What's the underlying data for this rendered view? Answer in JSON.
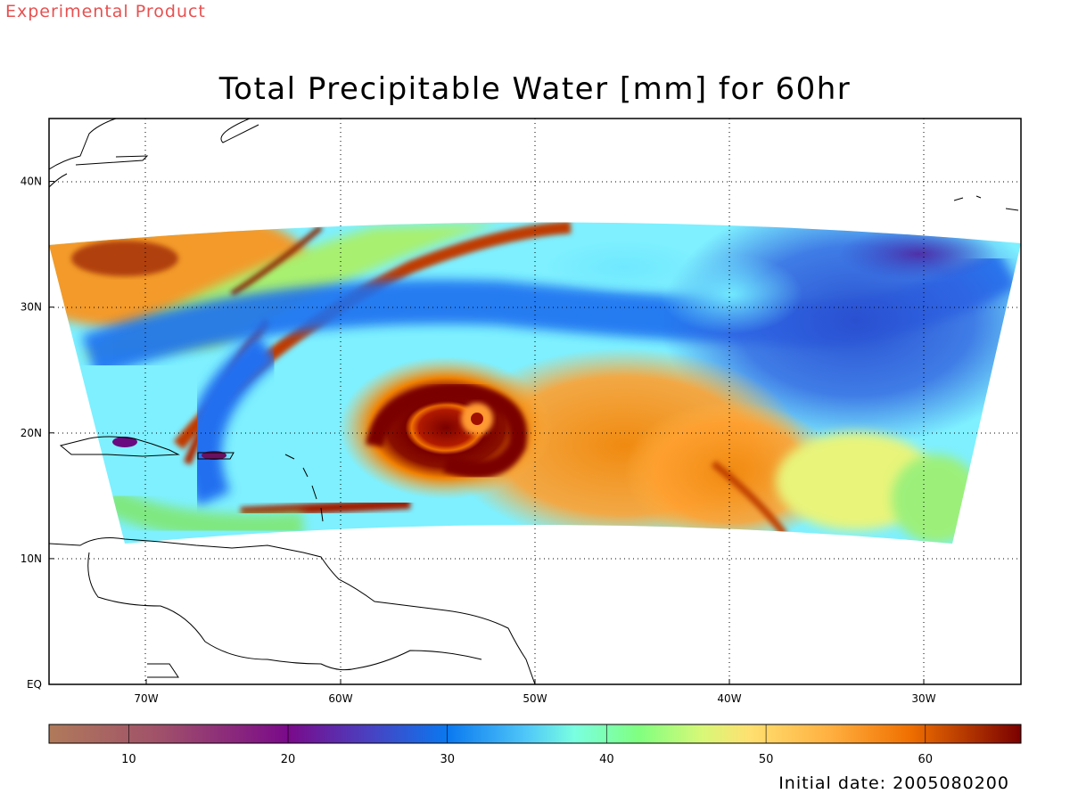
{
  "banner": "Experimental Product",
  "title": "Total Precipitable Water [mm] for 60hr",
  "initial_date": "Initial date: 2005080200",
  "map": {
    "lon_range": [
      -75,
      -25
    ],
    "lat_range": [
      0,
      45
    ],
    "lon_ticks": [
      {
        "value": -70,
        "label": "70W"
      },
      {
        "value": -60,
        "label": "60W"
      },
      {
        "value": -50,
        "label": "50W"
      },
      {
        "value": -40,
        "label": "40W"
      },
      {
        "value": -30,
        "label": "30W"
      }
    ],
    "lat_ticks": [
      {
        "value": 40,
        "label": "40N"
      },
      {
        "value": 30,
        "label": "30N"
      },
      {
        "value": 20,
        "label": "20N"
      },
      {
        "value": 10,
        "label": "10N"
      },
      {
        "value": 0,
        "label": "EQ"
      }
    ],
    "grid": true,
    "storm_center": {
      "lon": -53,
      "lat": 21
    }
  },
  "colorbar": {
    "range": [
      5,
      66
    ],
    "ticks": [
      10,
      20,
      30,
      40,
      50,
      60
    ],
    "stops": [
      {
        "v": 5,
        "c": "#b07a5a"
      },
      {
        "v": 12,
        "c": "#a0506a"
      },
      {
        "v": 20,
        "c": "#7a0a8a"
      },
      {
        "v": 25,
        "c": "#4a40c0"
      },
      {
        "v": 30,
        "c": "#0a78f0"
      },
      {
        "v": 35,
        "c": "#50c8f8"
      },
      {
        "v": 38,
        "c": "#7affe0"
      },
      {
        "v": 42,
        "c": "#80ff80"
      },
      {
        "v": 46,
        "c": "#d8f878"
      },
      {
        "v": 49,
        "c": "#ffe070"
      },
      {
        "v": 54,
        "c": "#ffb040"
      },
      {
        "v": 59,
        "c": "#f07000"
      },
      {
        "v": 66,
        "c": "#7a0000"
      }
    ]
  }
}
